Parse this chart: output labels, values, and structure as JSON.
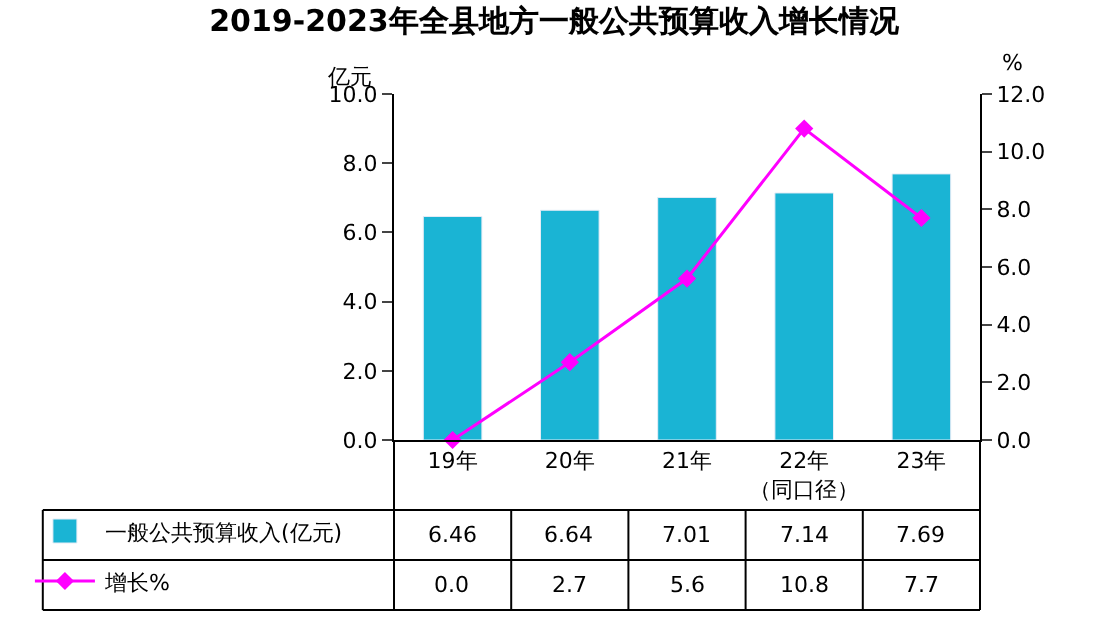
{
  "chart_data": {
    "type": "bar",
    "title": "2019-2023年全县地方一般公共预算收入增长情况",
    "ylabel": "亿元",
    "y2label": "%",
    "categories": [
      "19年",
      "20年",
      "21年",
      "22年（同口径）",
      "23年"
    ],
    "series": [
      {
        "name": "一般公共预算收入(亿元)",
        "color": "#1ab4d4",
        "values": [
          6.46,
          6.64,
          7.01,
          7.14,
          7.69
        ]
      },
      {
        "name": "增长%",
        "type": "line",
        "axis": "y2",
        "color": "#ff00ff",
        "marker": "diamond",
        "values": [
          0.0,
          2.7,
          5.6,
          10.8,
          7.7
        ],
        "value_labels": [
          "0.0",
          "2.7",
          "5.6",
          "10.8",
          "7.7"
        ]
      }
    ],
    "ylim": [
      0,
      10
    ],
    "yticks": [
      {
        "value": 0,
        "label": "0.0"
      },
      {
        "value": 2,
        "label": "2.0"
      },
      {
        "value": 4,
        "label": "4.0"
      },
      {
        "value": 6,
        "label": "6.0"
      },
      {
        "value": 8,
        "label": "8.0"
      },
      {
        "value": 10,
        "label": "10.0"
      }
    ],
    "y2lim": [
      0,
      12
    ],
    "y2ticks": [
      {
        "value": 0,
        "label": "0.0"
      },
      {
        "value": 2,
        "label": "2.0"
      },
      {
        "value": 4,
        "label": "4.0"
      },
      {
        "value": 6,
        "label": "6.0"
      },
      {
        "value": 8,
        "label": "8.0"
      },
      {
        "value": 10,
        "label": "10.0"
      },
      {
        "value": 12,
        "label": "12.0"
      }
    ],
    "data_labels": true,
    "legend": "bottom"
  }
}
